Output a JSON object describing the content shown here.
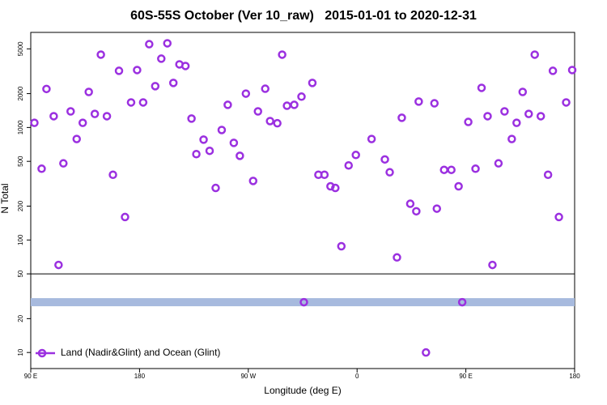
{
  "chart_data": {
    "type": "scatter",
    "title": "60S-55S October (Ver 10_raw)   2015-01-01 to 2020-12-31",
    "x_label": "Longitude (deg E)",
    "y_label": "N Total",
    "log_y": true,
    "legend": "lower left",
    "xlim": [
      90,
      540
    ],
    "xticks": [
      {
        "value": 90,
        "label": "90 E"
      },
      {
        "value": 180,
        "label": "180"
      },
      {
        "value": 270,
        "label": "90 W"
      },
      {
        "value": 360,
        "label": "0"
      },
      {
        "value": 450,
        "label": "90 E"
      },
      {
        "value": 540,
        "label": "180"
      }
    ],
    "ylim": [
      7.2,
      7000
    ],
    "yticks": [
      10,
      20,
      50,
      100,
      200,
      500,
      1000,
      2000,
      5000
    ],
    "divider": 50,
    "band_value": 28,
    "band_color": "#a7bade",
    "series": [
      {
        "name": "Land (Nadir&Glint) and Ocean (Glint)",
        "color": "#9b30e0",
        "x": [
          93,
          99,
          103,
          109,
          113,
          117,
          123,
          128,
          133,
          138,
          143,
          148,
          153,
          158,
          163,
          168,
          173,
          178,
          183,
          188,
          193,
          198,
          203,
          208,
          213,
          218,
          223,
          227,
          233,
          238,
          243,
          248,
          253,
          258,
          263,
          268,
          274,
          278,
          284,
          288,
          294,
          298,
          302,
          308,
          314,
          316,
          323,
          328,
          333,
          338,
          342,
          347,
          353,
          359,
          372,
          383,
          387,
          393,
          397,
          404,
          409,
          411,
          417,
          424,
          426,
          432,
          438,
          444,
          447,
          452,
          458,
          463,
          468,
          472,
          477,
          482,
          488,
          492,
          497,
          502,
          507,
          512,
          518,
          522,
          527,
          533,
          538
        ],
        "values": [
          1100,
          430,
          2200,
          1260,
          60,
          480,
          1390,
          790,
          1100,
          2070,
          1320,
          4440,
          1260,
          380,
          3190,
          160,
          1670,
          3240,
          1670,
          5500,
          2330,
          4090,
          5600,
          2490,
          3640,
          3520,
          1200,
          580,
          780,
          620,
          290,
          950,
          1590,
          730,
          560,
          2000,
          335,
          1390,
          2210,
          1140,
          1090,
          4440,
          1560,
          1590,
          1880,
          28,
          2490,
          380,
          380,
          300,
          290,
          88,
          460,
          570,
          790,
          520,
          400,
          70,
          1220,
          210,
          180,
          1700,
          10,
          1640,
          190,
          420,
          420,
          300,
          28,
          1120,
          430,
          2250,
          1260,
          60,
          480,
          1390,
          790,
          1100,
          2070,
          1320,
          4440,
          1260,
          380,
          3190,
          160,
          1670,
          3240
        ]
      }
    ]
  }
}
